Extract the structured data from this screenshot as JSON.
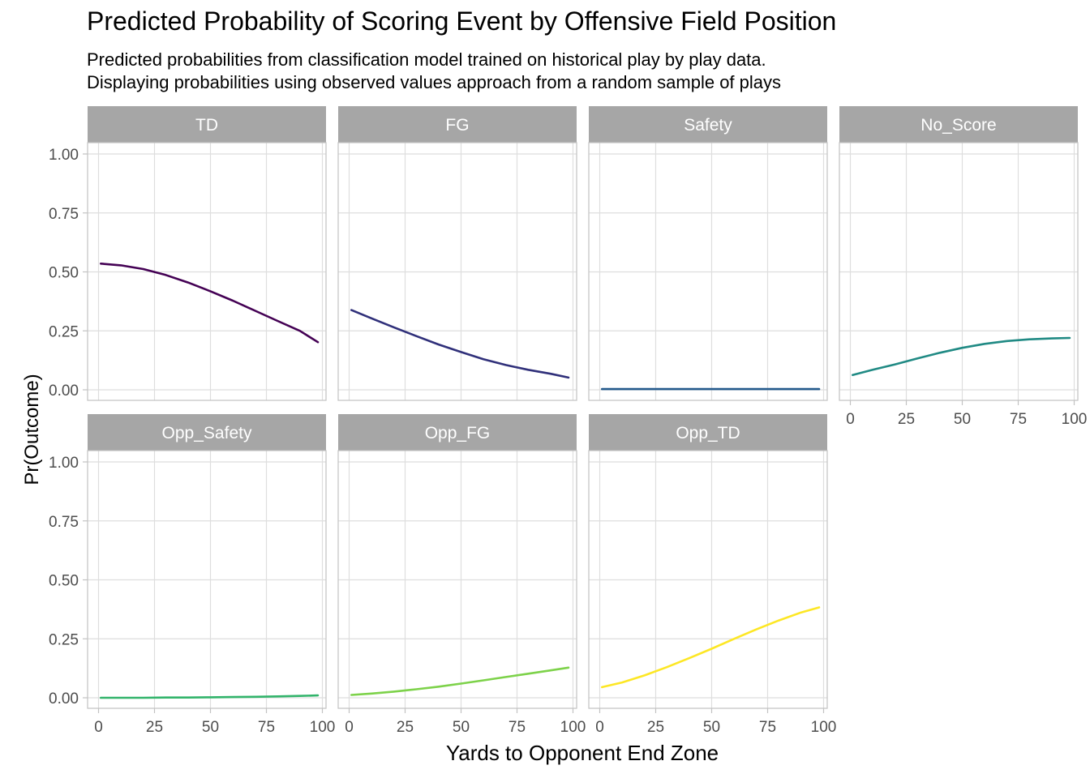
{
  "chart_data": {
    "type": "line",
    "title": "Predicted Probability of Scoring Event by Offensive Field Position",
    "subtitle": [
      "Predicted probabilities from classification model trained on historical play by play data.",
      "Displaying probabilities using observed values approach from a random sample of plays"
    ],
    "xlabel": "Yards to Opponent End Zone",
    "ylabel": "Pr(Outcome)",
    "xlim": [
      0,
      100
    ],
    "ylim": [
      0,
      1.0
    ],
    "x_ticks": [
      0,
      25,
      50,
      75,
      100
    ],
    "x_tick_labels": [
      "0",
      "25",
      "50",
      "75",
      "100"
    ],
    "y_ticks": [
      0,
      0.25,
      0.5,
      0.75,
      1.0
    ],
    "y_tick_labels": [
      "0.00",
      "0.25",
      "0.50",
      "0.75",
      "1.00"
    ],
    "grid": true,
    "facet_layout": {
      "ncol": 4,
      "nrow": 2
    },
    "x": [
      1,
      10,
      20,
      30,
      40,
      50,
      60,
      70,
      80,
      90,
      98
    ],
    "series": [
      {
        "name": "TD",
        "color": "#440154",
        "values": [
          0.535,
          0.528,
          0.512,
          0.487,
          0.455,
          0.418,
          0.378,
          0.335,
          0.292,
          0.25,
          0.202
        ]
      },
      {
        "name": "FG",
        "color": "#30307a",
        "values": [
          0.338,
          0.303,
          0.265,
          0.228,
          0.192,
          0.16,
          0.13,
          0.105,
          0.085,
          0.068,
          0.052
        ]
      },
      {
        "name": "Safety",
        "color": "#245a8c",
        "values": [
          0.003,
          0.003,
          0.003,
          0.003,
          0.003,
          0.003,
          0.003,
          0.003,
          0.003,
          0.003,
          0.003
        ]
      },
      {
        "name": "No_Score",
        "color": "#208a84",
        "values": [
          0.063,
          0.085,
          0.108,
          0.133,
          0.157,
          0.178,
          0.195,
          0.207,
          0.214,
          0.218,
          0.22
        ]
      },
      {
        "name": "Opp_Safety",
        "color": "#32b46b",
        "values": [
          0.0,
          0.0,
          0.0,
          0.001,
          0.001,
          0.002,
          0.003,
          0.004,
          0.006,
          0.008,
          0.01
        ]
      },
      {
        "name": "Opp_FG",
        "color": "#7dd24a",
        "values": [
          0.012,
          0.018,
          0.026,
          0.036,
          0.047,
          0.06,
          0.074,
          0.088,
          0.102,
          0.116,
          0.128
        ]
      },
      {
        "name": "Opp_TD",
        "color": "#fde725",
        "values": [
          0.045,
          0.065,
          0.095,
          0.13,
          0.168,
          0.208,
          0.25,
          0.29,
          0.328,
          0.362,
          0.383
        ]
      }
    ]
  }
}
